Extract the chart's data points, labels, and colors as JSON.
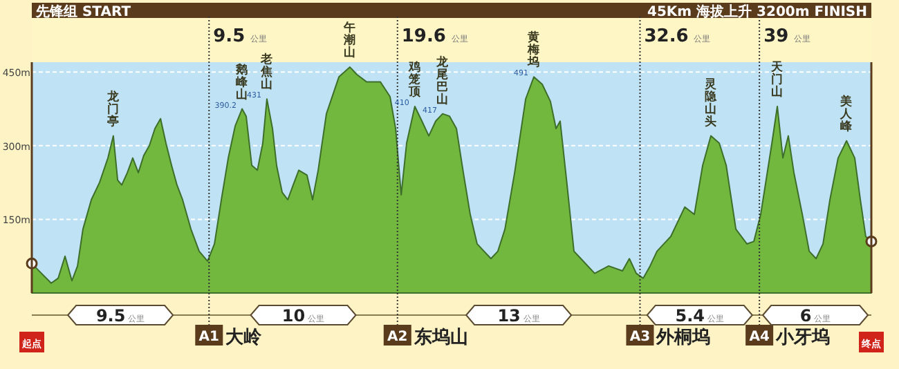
{
  "chart_data": {
    "type": "area",
    "title": "先锋组 START",
    "subtitle": "45Km 海拔上升 3200m FINISH",
    "color": "#72b83e",
    "marker": "none",
    "grid": "y",
    "tick_labels": "y",
    "xlim": [
      0,
      45
    ],
    "ylim": [
      0,
      470
    ],
    "yticks": [
      {
        "value": 150,
        "label": "150m"
      },
      {
        "value": 300,
        "label": "300m"
      },
      {
        "value": 450,
        "label": "450m"
      }
    ],
    "x": [
      0,
      0.52,
      1.04,
      1.41,
      1.78,
      2.15,
      2.45,
      2.74,
      3.19,
      3.63,
      4.08,
      4.37,
      4.6,
      4.82,
      5.12,
      5.41,
      5.71,
      6.0,
      6.3,
      6.6,
      6.9,
      7.19,
      7.49,
      7.78,
      8.08,
      8.53,
      8.97,
      9.42,
      9.79,
      10.16,
      10.53,
      10.9,
      11.27,
      11.49,
      11.79,
      12.09,
      12.38,
      12.6,
      12.9,
      13.12,
      13.42,
      13.72,
      14.01,
      14.31,
      14.75,
      15.05,
      15.35,
      15.79,
      16.46,
      17.05,
      17.42,
      17.94,
      18.68,
      19.2,
      19.5,
      19.8,
      20.09,
      20.53,
      20.91,
      21.28,
      21.65,
      22.02,
      22.39,
      22.76,
      23.13,
      23.5,
      23.87,
      24.24,
      24.61,
      24.98,
      25.36,
      25.88,
      26.47,
      26.91,
      27.36,
      27.8,
      28.1,
      28.32,
      28.69,
      29.06,
      29.43,
      30.17,
      30.92,
      31.66,
      32.03,
      32.4,
      32.77,
      33.14,
      33.51,
      33.88,
      34.25,
      35.0,
      35.51,
      35.96,
      36.4,
      36.85,
      37.22,
      37.74,
      38.33,
      38.7,
      39.07,
      39.67,
      39.96,
      40.26,
      40.55,
      40.85,
      41.3,
      41.67,
      42.04,
      42.41,
      42.78,
      43.22,
      43.67,
      44.11,
      44.41,
      44.7,
      45
    ],
    "values": [
      60,
      40,
      20,
      30,
      75,
      25,
      55,
      130,
      190,
      225,
      275,
      320,
      230,
      220,
      245,
      275,
      245,
      280,
      300,
      335,
      355,
      305,
      260,
      220,
      190,
      130,
      85,
      65,
      100,
      190,
      275,
      340,
      375,
      360,
      260,
      250,
      305,
      395,
      335,
      260,
      205,
      190,
      220,
      250,
      240,
      190,
      250,
      365,
      440,
      460,
      445,
      430,
      430,
      400,
      335,
      200,
      305,
      380,
      350,
      320,
      350,
      365,
      360,
      335,
      245,
      160,
      100,
      85,
      70,
      85,
      130,
      245,
      395,
      440,
      425,
      390,
      335,
      350,
      220,
      85,
      70,
      40,
      55,
      45,
      70,
      40,
      30,
      55,
      85,
      100,
      115,
      175,
      160,
      260,
      320,
      305,
      260,
      130,
      100,
      105,
      160,
      305,
      380,
      275,
      320,
      245,
      160,
      85,
      70,
      100,
      190,
      275,
      310,
      275,
      190,
      115,
      105
    ],
    "ref_lines": [
      {
        "axis": "x",
        "value": 9.5,
        "label": "9.5 公里"
      },
      {
        "axis": "x",
        "value": 19.6,
        "label": "19.6 公里"
      },
      {
        "axis": "x",
        "value": 32.6,
        "label": "32.6 公里"
      },
      {
        "axis": "x",
        "value": 39,
        "label": "39 公里"
      }
    ],
    "annotations": [
      {
        "text": "龙门亭",
        "x": 4.37,
        "y": 320
      },
      {
        "text": "鹅峰山",
        "x": 11.27,
        "y": 375
      },
      {
        "text": "390.2",
        "x": 11.27,
        "y": 375
      },
      {
        "text": "老焦山",
        "x": 12.6,
        "y": 395
      },
      {
        "text": "431",
        "x": 12.6,
        "y": 395
      },
      {
        "text": "午潮山",
        "x": 17.05,
        "y": 460
      },
      {
        "text": "鸡笼顶",
        "x": 20.53,
        "y": 380
      },
      {
        "text": "410",
        "x": 20.53,
        "y": 380
      },
      {
        "text": "龙尾巴山",
        "x": 22.02,
        "y": 365
      },
      {
        "text": "417",
        "x": 22.02,
        "y": 365
      },
      {
        "text": "黄梅坞",
        "x": 26.91,
        "y": 440
      },
      {
        "text": "491",
        "x": 26.91,
        "y": 440
      },
      {
        "text": "灵隐山头",
        "x": 36.4,
        "y": 320
      },
      {
        "text": "天门山",
        "x": 39.96,
        "y": 380
      },
      {
        "text": "美人峰",
        "x": 43.67,
        "y": 310
      },
      {
        "text": "A1 大岭",
        "x": 9.5
      },
      {
        "text": "A2 东坞山",
        "x": 19.6
      },
      {
        "text": "A3 外桐坞",
        "x": 32.6
      },
      {
        "text": "A4 小牙坞",
        "x": 39
      },
      "起点",
      "终点",
      "9.5 公里",
      "10 公里",
      "13 公里",
      "5.4 公里",
      "6 公里"
    ]
  }
}
